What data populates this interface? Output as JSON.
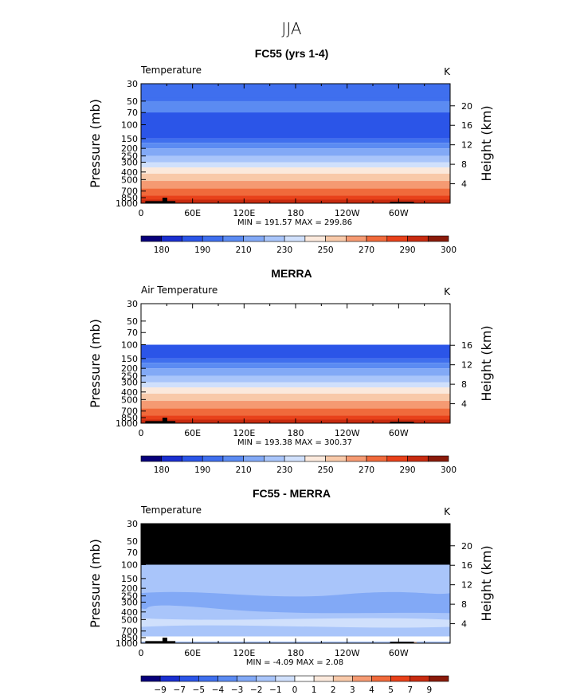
{
  "season": "JJA",
  "units": "K",
  "chart_data": [
    {
      "type": "heatmap",
      "title": "FC55 (yrs 1-4)",
      "variable_label": "Temperature",
      "units_label": "K",
      "ylabel": "Pressure (mb)",
      "ylabel_right": "Height (km)",
      "xlabel": "",
      "x_ticks": [
        "0",
        "60E",
        "120E",
        "180",
        "120W",
        "60W"
      ],
      "y_ticks": [
        "30",
        "50",
        "70",
        "100",
        "150",
        "200",
        "250",
        "300",
        "400",
        "500",
        "700",
        "850",
        "1000"
      ],
      "height_ticks": [
        "20",
        "16",
        "12",
        "8",
        "4"
      ],
      "ylim_pressure": [
        1000,
        30
      ],
      "data_top_pressure": 30,
      "minmax_text": "MIN = 191.57  MAX = 299.86",
      "colorbar_labels": [
        "180",
        "190",
        "210",
        "230",
        "250",
        "270",
        "290",
        "300"
      ]
    },
    {
      "type": "heatmap",
      "title": "MERRA",
      "variable_label": "Air Temperature",
      "units_label": "K",
      "ylabel": "Pressure (mb)",
      "ylabel_right": "Height (km)",
      "xlabel": "",
      "x_ticks": [
        "0",
        "60E",
        "120E",
        "180",
        "120W",
        "60W"
      ],
      "y_ticks": [
        "30",
        "50",
        "70",
        "100",
        "150",
        "200",
        "250",
        "300",
        "400",
        "500",
        "700",
        "850",
        "1000"
      ],
      "height_ticks": [
        "16",
        "12",
        "8",
        "4"
      ],
      "ylim_pressure": [
        1000,
        30
      ],
      "data_top_pressure": 100,
      "minmax_text": "MIN = 193.38  MAX = 300.37",
      "colorbar_labels": [
        "180",
        "190",
        "210",
        "230",
        "250",
        "270",
        "290",
        "300"
      ]
    },
    {
      "type": "heatmap",
      "title": "FC55 - MERRA",
      "variable_label": "Temperature",
      "units_label": "K",
      "ylabel": "Pressure (mb)",
      "ylabel_right": "Height (km)",
      "xlabel": "",
      "x_ticks": [
        "0",
        "60E",
        "120E",
        "180",
        "120W",
        "60W"
      ],
      "y_ticks": [
        "30",
        "50",
        "70",
        "100",
        "150",
        "200",
        "250",
        "300",
        "400",
        "500",
        "700",
        "850",
        "1000"
      ],
      "height_ticks": [
        "20",
        "16",
        "12",
        "8",
        "4"
      ],
      "ylim_pressure": [
        1000,
        30
      ],
      "data_top_pressure": 100,
      "minmax_text": "MIN =   -4.09  MAX =    2.08",
      "colorbar_labels": [
        "-9",
        "-7",
        "-5",
        "-4",
        "-3",
        "-2",
        "-1",
        "0",
        "1",
        "2",
        "3",
        "4",
        "5",
        "7",
        "9"
      ]
    }
  ],
  "palette": {
    "temperature": [
      "#08007a",
      "#1a2fd0",
      "#2b55e8",
      "#3f6fee",
      "#5b8bf2",
      "#82a9f6",
      "#a9c5fa",
      "#d0e0fc",
      "#fbe9dc",
      "#f8c9a9",
      "#f59a72",
      "#f06a3b",
      "#e8411a",
      "#c82b10",
      "#8a1a0a"
    ],
    "difference": [
      "#08007a",
      "#1a2fd0",
      "#2b55e8",
      "#3f6fee",
      "#5b8bf2",
      "#82a9f6",
      "#a9c5fa",
      "#d0e0fc",
      "#ffffff",
      "#fbe9dc",
      "#f8c9a9",
      "#f59a72",
      "#f06a3b",
      "#e8411a",
      "#c82b10",
      "#8a1a0a"
    ],
    "masked": "#000000"
  }
}
